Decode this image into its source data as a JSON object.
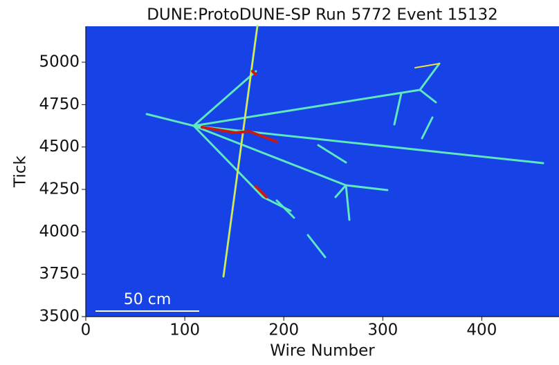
{
  "chart_data": {
    "type": "image",
    "title": "DUNE:ProtoDUNE-SP Run 5772 Event 15132",
    "x_label": "Wire Number",
    "y_label": "Tick",
    "annotation": "50 cm",
    "xlim": [
      0,
      478
    ],
    "xticks": [
      0,
      100,
      200,
      300,
      400
    ],
    "ylim": [
      3500,
      5212
    ],
    "yticks": [
      3500,
      3750,
      4000,
      4250,
      4500,
      4750,
      5000
    ],
    "background": "#1742e6"
  }
}
